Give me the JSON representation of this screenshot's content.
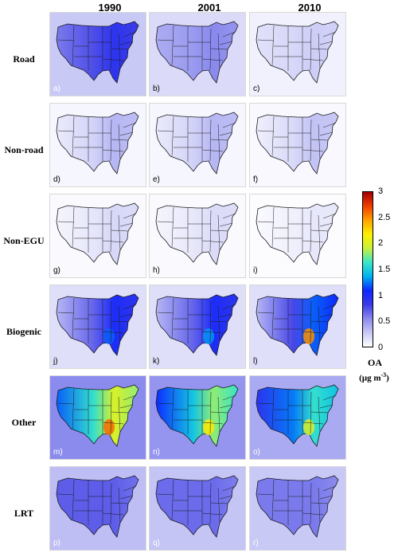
{
  "columns": [
    "1990",
    "2001",
    "2010"
  ],
  "rows": [
    "Road",
    "Non-road",
    "Non-EGU",
    "Biogenic",
    "Other",
    "LRT"
  ],
  "panel_labels": [
    "a)",
    "b)",
    "c)",
    "d)",
    "e)",
    "f)",
    "g)",
    "h)",
    "i)",
    "j)",
    "k)",
    "l)",
    "m)",
    "n)",
    "o)",
    "p)",
    "q)",
    "r)"
  ],
  "colorbar": {
    "title": "OA",
    "unit_base": "(μg m",
    "unit_exp": "-3",
    "unit_close": ")",
    "ticks": [
      "3",
      "2.5",
      "2",
      "1.5",
      "1",
      "0.5",
      "0"
    ],
    "min": 0,
    "max": 3,
    "colors": [
      "#ffffff",
      "#c8c8f6",
      "#8a8aee",
      "#3a3ae6",
      "#0d27ff",
      "#00b4f0",
      "#3ce6c8",
      "#c8f03c",
      "#fff000",
      "#ffa000",
      "#f03c00",
      "#a00000"
    ]
  },
  "panels": [
    {
      "row": "Road",
      "year": "1990",
      "east": 0.9,
      "west": 0.6,
      "hot": 0
    },
    {
      "row": "Road",
      "year": "2001",
      "east": 0.55,
      "west": 0.4,
      "hot": 0
    },
    {
      "row": "Road",
      "year": "2010",
      "east": 0.25,
      "west": 0.15,
      "hot": 0
    },
    {
      "row": "Non-road",
      "year": "1990",
      "east": 0.35,
      "west": 0.1,
      "hot": 0
    },
    {
      "row": "Non-road",
      "year": "2001",
      "east": 0.35,
      "west": 0.1,
      "hot": 0
    },
    {
      "row": "Non-road",
      "year": "2010",
      "east": 0.3,
      "west": 0.08,
      "hot": 0
    },
    {
      "row": "Non-EGU",
      "year": "1990",
      "east": 0.2,
      "west": 0.05,
      "hot": 0
    },
    {
      "row": "Non-EGU",
      "year": "2001",
      "east": 0.18,
      "west": 0.05,
      "hot": 0
    },
    {
      "row": "Non-EGU",
      "year": "2010",
      "east": 0.12,
      "west": 0.03,
      "hot": 0
    },
    {
      "row": "Biogenic",
      "year": "1990",
      "east": 1.0,
      "west": 0.35,
      "hot": 1.2
    },
    {
      "row": "Biogenic",
      "year": "2001",
      "east": 1.0,
      "west": 0.35,
      "hot": 1.3
    },
    {
      "row": "Biogenic",
      "year": "2010",
      "east": 1.2,
      "west": 0.35,
      "hot": 2.5
    },
    {
      "row": "Other",
      "year": "1990",
      "east": 2.0,
      "west": 1.2,
      "hot": 2.6
    },
    {
      "row": "Other",
      "year": "2001",
      "east": 1.8,
      "west": 1.1,
      "hot": 2.2
    },
    {
      "row": "Other",
      "year": "2010",
      "east": 1.6,
      "west": 0.9,
      "hot": 2.0
    },
    {
      "row": "LRT",
      "year": "1990",
      "east": 0.7,
      "west": 0.7,
      "hot": 0
    },
    {
      "row": "LRT",
      "year": "2001",
      "east": 0.65,
      "west": 0.65,
      "hot": 0
    },
    {
      "row": "LRT",
      "year": "2010",
      "east": 0.6,
      "west": 0.6,
      "hot": 0
    }
  ]
}
